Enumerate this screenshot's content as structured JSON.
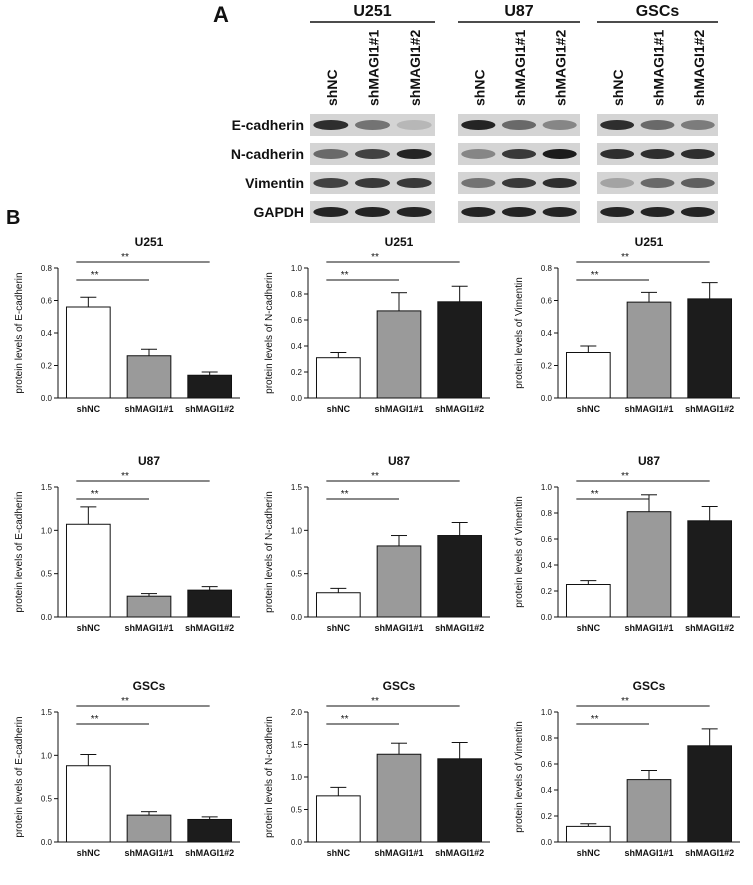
{
  "figure": {
    "panel_a": "A",
    "panel_b": "B"
  },
  "blot": {
    "groups": [
      "U251",
      "U87",
      "GSCs"
    ],
    "lanes": [
      "shNC",
      "shMAGI1#1",
      "shMAGI1#2"
    ],
    "proteins": [
      "E-cadherin",
      "N-cadherin",
      "Vimentin",
      "GAPDH"
    ]
  },
  "chart_data": [
    {
      "type": "bar",
      "title": "U251",
      "y_label": "protein levels of E-cadherin",
      "categories": [
        "shNC",
        "shMAGI1#1",
        "shMAGI1#2"
      ],
      "values": [
        0.56,
        0.26,
        0.14
      ],
      "errors": [
        0.06,
        0.04,
        0.02
      ],
      "colors": [
        "#ffffff",
        "#9a9a9a",
        "#1c1c1c"
      ],
      "ylim": [
        0,
        0.8
      ],
      "yticks": [
        {
          "value": 0,
          "label": "0.0"
        },
        0.2,
        0.4,
        0.6,
        0.8
      ],
      "annotations": [
        "**",
        "**"
      ]
    },
    {
      "type": "bar",
      "title": "U251",
      "y_label": "protein levels of N-cadherin",
      "categories": [
        "shNC",
        "shMAGI1#1",
        "shMAGI1#2"
      ],
      "values": [
        0.31,
        0.67,
        0.74
      ],
      "errors": [
        0.04,
        0.14,
        0.12
      ],
      "colors": [
        "#ffffff",
        "#9a9a9a",
        "#1c1c1c"
      ],
      "ylim": [
        0,
        1
      ],
      "yticks": [
        {
          "value": 0,
          "label": "0.0"
        },
        0.2,
        0.4,
        0.6,
        0.8,
        {
          "value": 1,
          "label": "1.0"
        }
      ],
      "annotations": [
        "**",
        "**"
      ]
    },
    {
      "type": "bar",
      "title": "U251",
      "y_label": "protein levels of Vimentin",
      "categories": [
        "shNC",
        "shMAGI1#1",
        "shMAGI1#2"
      ],
      "values": [
        0.28,
        0.59,
        0.61
      ],
      "errors": [
        0.04,
        0.06,
        0.1
      ],
      "colors": [
        "#ffffff",
        "#9a9a9a",
        "#1c1c1c"
      ],
      "ylim": [
        0,
        0.8
      ],
      "yticks": [
        {
          "value": 0,
          "label": "0.0"
        },
        0.2,
        0.4,
        0.6,
        0.8
      ],
      "annotations": [
        "**",
        "**"
      ]
    },
    {
      "type": "bar",
      "title": "U87",
      "y_label": "protein levels of E-cadherin",
      "categories": [
        "shNC",
        "shMAGI1#1",
        "shMAGI1#2"
      ],
      "values": [
        1.07,
        0.24,
        0.31
      ],
      "errors": [
        0.2,
        0.03,
        0.04
      ],
      "colors": [
        "#ffffff",
        "#9a9a9a",
        "#1c1c1c"
      ],
      "ylim": [
        0,
        1.5
      ],
      "yticks": [
        {
          "value": 0,
          "label": "0.0"
        },
        0.5,
        {
          "value": 1,
          "label": "1.0"
        },
        1.5
      ],
      "annotations": [
        "**",
        "**"
      ]
    },
    {
      "type": "bar",
      "title": "U87",
      "y_label": "protein levels of N-cadherin",
      "categories": [
        "shNC",
        "shMAGI1#1",
        "shMAGI1#2"
      ],
      "values": [
        0.28,
        0.82,
        0.94
      ],
      "errors": [
        0.05,
        0.12,
        0.15
      ],
      "colors": [
        "#ffffff",
        "#9a9a9a",
        "#1c1c1c"
      ],
      "ylim": [
        0,
        1.5
      ],
      "yticks": [
        {
          "value": 0,
          "label": "0.0"
        },
        0.5,
        {
          "value": 1,
          "label": "1.0"
        },
        1.5
      ],
      "annotations": [
        "**",
        "**"
      ]
    },
    {
      "type": "bar",
      "title": "U87",
      "y_label": "protein levels of Vimentin",
      "categories": [
        "shNC",
        "shMAGI1#1",
        "shMAGI1#2"
      ],
      "values": [
        0.25,
        0.81,
        0.74
      ],
      "errors": [
        0.03,
        0.13,
        0.11
      ],
      "colors": [
        "#ffffff",
        "#9a9a9a",
        "#1c1c1c"
      ],
      "ylim": [
        0,
        1
      ],
      "yticks": [
        {
          "value": 0,
          "label": "0.0"
        },
        0.2,
        0.4,
        0.6,
        0.8,
        {
          "value": 1,
          "label": "1.0"
        }
      ],
      "annotations": [
        "**",
        "**"
      ]
    },
    {
      "type": "bar",
      "title": "GSCs",
      "y_label": "protein levels of E-cadherin",
      "categories": [
        "shNC",
        "shMAGI1#1",
        "shMAGI1#2"
      ],
      "values": [
        0.88,
        0.31,
        0.26
      ],
      "errors": [
        0.13,
        0.04,
        0.03
      ],
      "colors": [
        "#ffffff",
        "#9a9a9a",
        "#1c1c1c"
      ],
      "ylim": [
        0,
        1.5
      ],
      "yticks": [
        {
          "value": 0,
          "label": "0.0"
        },
        0.5,
        {
          "value": 1,
          "label": "1.0"
        },
        1.5
      ],
      "annotations": [
        "**",
        "**"
      ]
    },
    {
      "type": "bar",
      "title": "GSCs",
      "y_label": "protein levels of N-cadherin",
      "categories": [
        "shNC",
        "shMAGI1#1",
        "shMAGI1#2"
      ],
      "values": [
        0.71,
        1.35,
        1.28
      ],
      "errors": [
        0.13,
        0.17,
        0.25
      ],
      "colors": [
        "#ffffff",
        "#9a9a9a",
        "#1c1c1c"
      ],
      "ylim": [
        0,
        2
      ],
      "yticks": [
        {
          "value": 0,
          "label": "0.0"
        },
        0.5,
        {
          "value": 1,
          "label": "1.0"
        },
        1.5,
        {
          "value": 2,
          "label": "2.0"
        }
      ],
      "annotations": [
        "**",
        "**"
      ]
    },
    {
      "type": "bar",
      "title": "GSCs",
      "y_label": "protein levels of Vimentin",
      "categories": [
        "shNC",
        "shMAGI1#1",
        "shMAGI1#2"
      ],
      "values": [
        0.12,
        0.48,
        0.74
      ],
      "errors": [
        0.02,
        0.07,
        0.13
      ],
      "colors": [
        "#ffffff",
        "#9a9a9a",
        "#1c1c1c"
      ],
      "ylim": [
        0,
        1
      ],
      "yticks": [
        {
          "value": 0,
          "label": "0.0"
        },
        0.2,
        0.4,
        0.6,
        0.8,
        {
          "value": 1,
          "label": "1.0"
        }
      ],
      "annotations": [
        "**",
        "**"
      ]
    }
  ]
}
